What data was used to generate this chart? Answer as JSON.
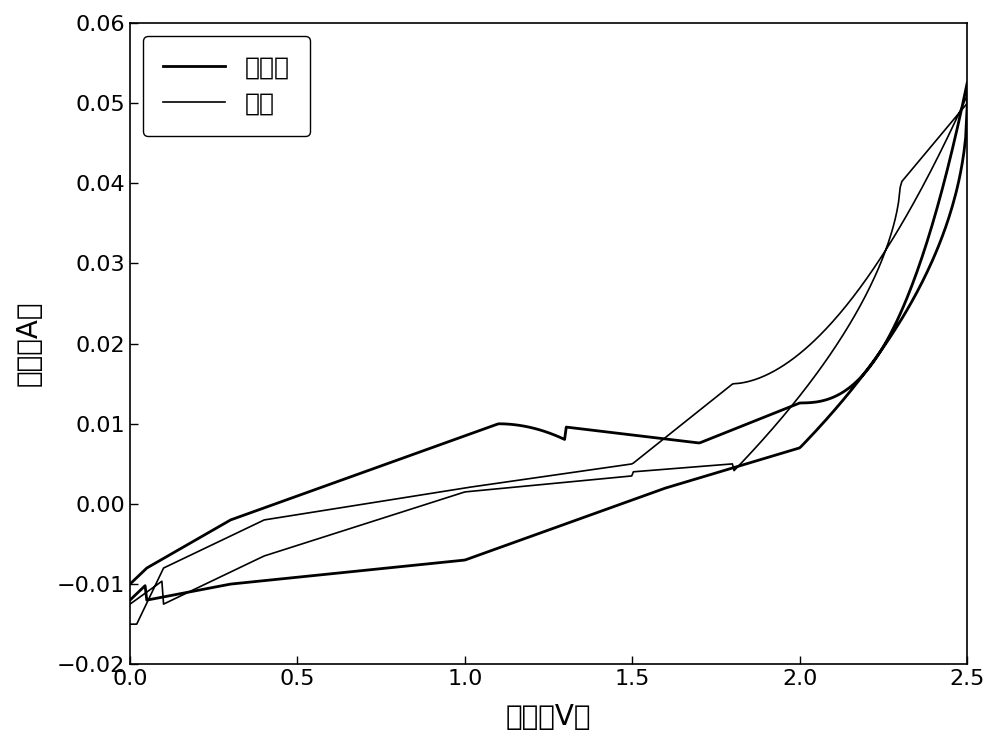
{
  "xlabel": "电位（V）",
  "ylabel": "电流（A）",
  "xlim": [
    0.0,
    2.5
  ],
  "ylim": [
    -0.02,
    0.06
  ],
  "xticks": [
    0.0,
    0.5,
    1.0,
    1.5,
    2.0,
    2.5
  ],
  "yticks": [
    -0.02,
    -0.01,
    0.0,
    0.01,
    0.02,
    0.03,
    0.04,
    0.05,
    0.06
  ],
  "legend_labels": [
    "未掺碳",
    "掺碳"
  ],
  "line_color": "#000000",
  "background_color": "#ffffff",
  "xlabel_fontsize": 20,
  "ylabel_fontsize": 20,
  "tick_fontsize": 16,
  "legend_fontsize": 18,
  "linewidth_thick": 2.0,
  "linewidth_thin": 1.2
}
